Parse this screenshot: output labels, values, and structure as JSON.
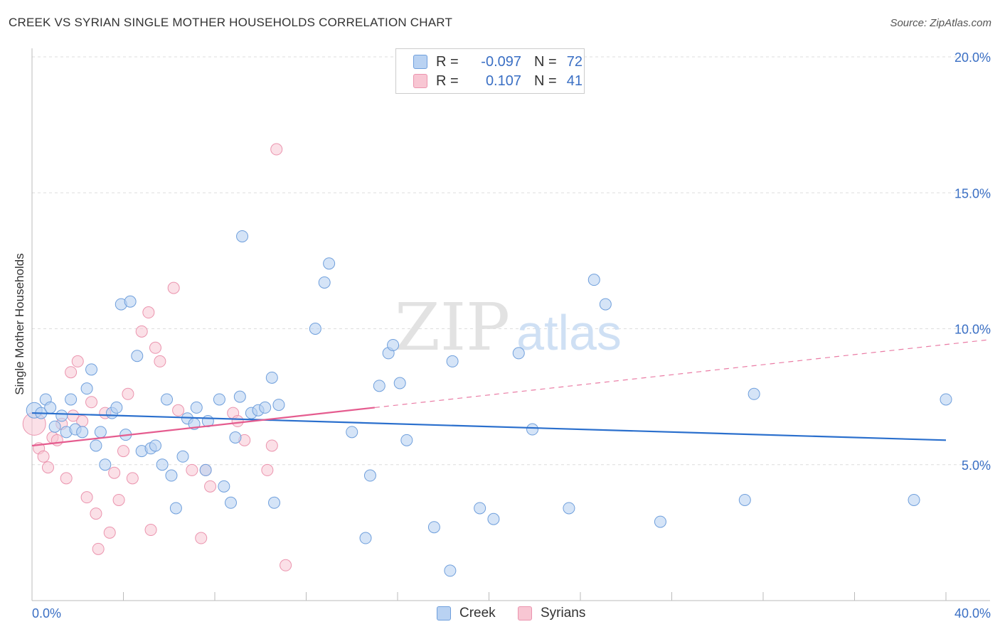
{
  "title": "CREEK VS SYRIAN SINGLE MOTHER HOUSEHOLDS CORRELATION CHART",
  "source": "Source: ZipAtlas.com",
  "watermark": {
    "zip": "ZIP",
    "atlas": "atlas"
  },
  "legend": {
    "rows": [
      {
        "r_label": "R =",
        "r_value": "-0.097",
        "n_label": "N =",
        "n_value": "72"
      },
      {
        "r_label": "R =",
        "r_value": "0.107",
        "n_label": "N =",
        "n_value": "41"
      }
    ],
    "bottom": [
      "Creek",
      "Syrians"
    ]
  },
  "colors": {
    "creek_fill": "#b9d2f2",
    "creek_stroke": "#6f9fdc",
    "creek_line": "#2a6fcd",
    "syrian_fill": "#f8c6d3",
    "syrian_stroke": "#eb94ae",
    "syrian_line": "#e55c8f",
    "axis_text": "#3a6fc4",
    "grid": "#dddddd"
  },
  "chart_data": {
    "type": "scatter",
    "title": "CREEK VS SYRIAN SINGLE MOTHER HOUSEHOLDS CORRELATION CHART",
    "xlabel": "",
    "ylabel": "Single Mother Households",
    "xlim": [
      0,
      40
    ],
    "ylim": [
      0,
      20
    ],
    "x_tick_labels": [
      "0.0%",
      "40.0%"
    ],
    "y_ticks": [
      5,
      10,
      15,
      20
    ],
    "y_tick_labels": [
      "5.0%",
      "10.0%",
      "15.0%",
      "20.0%"
    ],
    "series": [
      {
        "name": "Creek",
        "R": -0.097,
        "N": 72,
        "trend": {
          "x": [
            0,
            40
          ],
          "y": [
            6.9,
            5.9
          ]
        },
        "points": [
          [
            0.1,
            7.0
          ],
          [
            0.4,
            6.9
          ],
          [
            0.6,
            7.4
          ],
          [
            0.8,
            7.1
          ],
          [
            1.0,
            6.4
          ],
          [
            1.3,
            6.8
          ],
          [
            1.5,
            6.2
          ],
          [
            1.7,
            7.4
          ],
          [
            1.9,
            6.3
          ],
          [
            2.2,
            6.2
          ],
          [
            2.4,
            7.8
          ],
          [
            2.6,
            8.5
          ],
          [
            2.8,
            5.7
          ],
          [
            3.0,
            6.2
          ],
          [
            3.2,
            5.0
          ],
          [
            3.5,
            6.9
          ],
          [
            3.7,
            7.1
          ],
          [
            3.9,
            10.9
          ],
          [
            4.1,
            6.1
          ],
          [
            4.3,
            11.0
          ],
          [
            4.6,
            9.0
          ],
          [
            4.8,
            5.5
          ],
          [
            5.2,
            5.6
          ],
          [
            5.4,
            5.7
          ],
          [
            5.7,
            5.0
          ],
          [
            5.9,
            7.4
          ],
          [
            6.1,
            4.6
          ],
          [
            6.3,
            3.4
          ],
          [
            6.6,
            5.3
          ],
          [
            6.8,
            6.7
          ],
          [
            7.1,
            6.5
          ],
          [
            7.2,
            7.1
          ],
          [
            7.6,
            4.8
          ],
          [
            7.7,
            6.6
          ],
          [
            8.2,
            7.4
          ],
          [
            8.4,
            4.2
          ],
          [
            8.7,
            3.6
          ],
          [
            8.9,
            6.0
          ],
          [
            9.1,
            7.5
          ],
          [
            9.2,
            13.4
          ],
          [
            9.6,
            6.9
          ],
          [
            9.9,
            7.0
          ],
          [
            10.2,
            7.1
          ],
          [
            10.5,
            8.2
          ],
          [
            10.6,
            3.6
          ],
          [
            10.8,
            7.2
          ],
          [
            12.4,
            10.0
          ],
          [
            12.8,
            11.7
          ],
          [
            13.0,
            12.4
          ],
          [
            14.0,
            6.2
          ],
          [
            14.8,
            4.6
          ],
          [
            14.6,
            2.3
          ],
          [
            15.2,
            7.9
          ],
          [
            15.6,
            9.1
          ],
          [
            15.8,
            9.4
          ],
          [
            16.1,
            8.0
          ],
          [
            16.4,
            5.9
          ],
          [
            17.6,
            2.7
          ],
          [
            18.3,
            1.1
          ],
          [
            18.4,
            8.8
          ],
          [
            19.6,
            3.4
          ],
          [
            20.2,
            3.0
          ],
          [
            21.3,
            9.1
          ],
          [
            21.9,
            6.3
          ],
          [
            23.5,
            3.4
          ],
          [
            24.6,
            11.8
          ],
          [
            25.1,
            10.9
          ],
          [
            27.5,
            2.9
          ],
          [
            31.2,
            3.7
          ],
          [
            31.6,
            7.6
          ],
          [
            38.6,
            3.7
          ],
          [
            40.0,
            7.4
          ]
        ]
      },
      {
        "name": "Syrians",
        "R": 0.107,
        "N": 41,
        "trend": {
          "x": [
            0,
            15
          ],
          "y": [
            5.7,
            7.1
          ]
        },
        "trend_dashed": {
          "x": [
            15,
            40
          ],
          "y": [
            7.1,
            9.6
          ]
        },
        "points": [
          [
            0.1,
            6.5
          ],
          [
            0.3,
            5.6
          ],
          [
            0.5,
            5.3
          ],
          [
            0.7,
            4.9
          ],
          [
            0.9,
            6.0
          ],
          [
            1.1,
            5.9
          ],
          [
            1.3,
            6.5
          ],
          [
            1.5,
            4.5
          ],
          [
            1.7,
            8.4
          ],
          [
            1.8,
            6.8
          ],
          [
            2.0,
            8.8
          ],
          [
            2.2,
            6.6
          ],
          [
            2.4,
            3.8
          ],
          [
            2.6,
            7.3
          ],
          [
            2.8,
            3.2
          ],
          [
            2.9,
            1.9
          ],
          [
            3.2,
            6.9
          ],
          [
            3.4,
            2.5
          ],
          [
            3.6,
            4.7
          ],
          [
            3.8,
            3.7
          ],
          [
            4.0,
            5.5
          ],
          [
            4.2,
            7.6
          ],
          [
            4.4,
            4.5
          ],
          [
            4.8,
            9.9
          ],
          [
            5.1,
            10.6
          ],
          [
            5.2,
            2.6
          ],
          [
            5.4,
            9.3
          ],
          [
            5.6,
            8.8
          ],
          [
            6.2,
            11.5
          ],
          [
            6.4,
            7.0
          ],
          [
            7.0,
            4.8
          ],
          [
            7.4,
            2.3
          ],
          [
            7.6,
            4.8
          ],
          [
            7.8,
            4.2
          ],
          [
            8.8,
            6.9
          ],
          [
            9.0,
            6.6
          ],
          [
            9.3,
            5.9
          ],
          [
            10.3,
            4.8
          ],
          [
            10.5,
            5.7
          ],
          [
            10.7,
            16.6
          ],
          [
            11.1,
            1.3
          ]
        ]
      }
    ]
  }
}
